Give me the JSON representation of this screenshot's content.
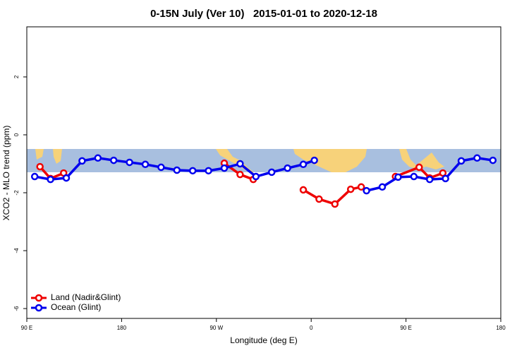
{
  "chart_data": {
    "type": "line",
    "title": "0-15N July (Ver 10)   2015-01-01 to 2020-12-18",
    "x_label": "Longitude (deg E)",
    "y_label": "XCO2 - MLO trend (ppm)",
    "xlim": [
      90,
      540
    ],
    "xticks": [
      {
        "value": 90,
        "label": "90 E"
      },
      {
        "value": 180,
        "label": "180"
      },
      {
        "value": 270,
        "label": "90 W"
      },
      {
        "value": 360,
        "label": "0"
      },
      {
        "value": 450,
        "label": "90 E"
      },
      {
        "value": 540,
        "label": "180"
      }
    ],
    "ylim": [
      -6.34,
      3.73
    ],
    "yticks": [
      -6,
      -4,
      -2,
      0,
      2
    ],
    "legend": "bottom-left",
    "series": [
      {
        "name": "Land (Nadir&Glint)",
        "color": "#ee0000",
        "x": [
          102.5,
          112.5,
          125,
          200,
          277.5,
          292.5,
          305,
          330,
          352.5,
          367.5,
          382.5,
          397.5,
          407.5,
          425,
          440,
          462.5,
          472.5,
          485
        ],
        "values": [
          -1.1,
          -1.51,
          -1.32,
          null,
          -0.98,
          -1.37,
          -1.54,
          null,
          -1.9,
          -2.22,
          -2.39,
          -1.88,
          -1.8,
          null,
          -1.44,
          -1.12,
          -1.49,
          -1.32
        ]
      },
      {
        "name": "Ocean (Glint)",
        "color": "#0000ee",
        "x": [
          97.5,
          112.5,
          127.5,
          142.5,
          157.5,
          172.5,
          187.5,
          202.5,
          217.5,
          232.5,
          247.5,
          262.5,
          277.5,
          292.5,
          307.5,
          322.5,
          337.5,
          352.5,
          363,
          387.5,
          412.5,
          427.5,
          442.5,
          457.5,
          472.5,
          487.5,
          502.5,
          517.5,
          532.5
        ],
        "values": [
          -1.44,
          -1.54,
          -1.49,
          -0.9,
          -0.8,
          -0.88,
          -0.95,
          -1.02,
          -1.12,
          -1.22,
          -1.24,
          -1.24,
          -1.15,
          -1.0,
          -1.44,
          -1.29,
          -1.15,
          -1.02,
          -0.88,
          null,
          -1.93,
          -1.8,
          -1.46,
          -1.44,
          -1.54,
          -1.51,
          -0.9,
          -0.8,
          -0.88
        ]
      }
    ]
  }
}
